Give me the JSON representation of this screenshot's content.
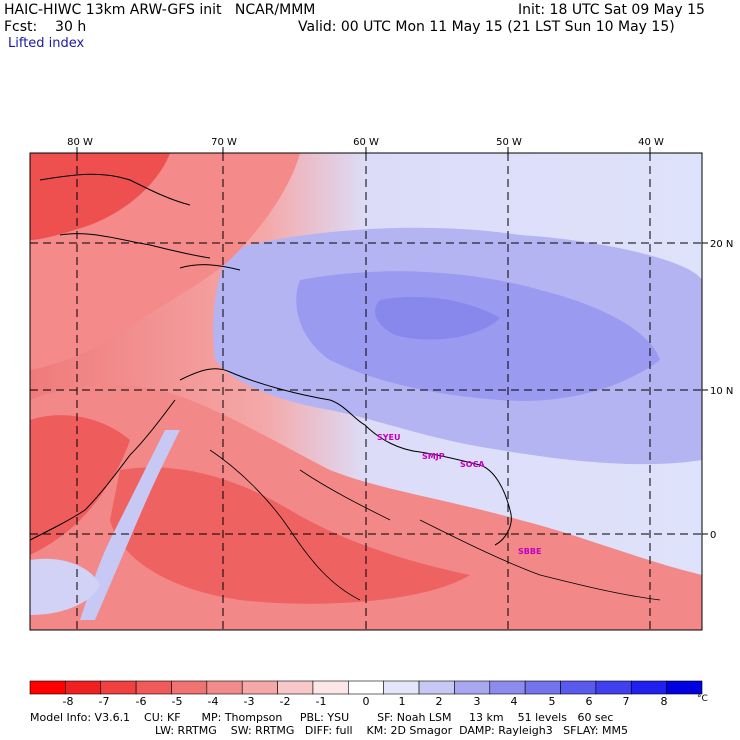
{
  "header": {
    "model": "HAIC-HIWC 13km ARW-GFS init   NCAR/MMM",
    "init": "Init: 18 UTC Sat 09 May 15",
    "fcst": "Fcst:    30 h",
    "valid": "Valid: 00 UTC Mon 11 May 15 (21 LST Sun 10 May 15)",
    "field": "Lifted index"
  },
  "map": {
    "lon_labels": [
      "80 W",
      "70 W",
      "60 W",
      "50 W",
      "40 W"
    ],
    "lat_labels": [
      "20 N",
      "10 N",
      "0"
    ],
    "stations": [
      "SYEU",
      "SMJP",
      "SOCA",
      "SBBE"
    ]
  },
  "colorbar": {
    "labels": [
      "-8",
      "-7",
      "-6",
      "-5",
      "-4",
      "-3",
      "-2",
      "-1",
      "0",
      "1",
      "2",
      "3",
      "4",
      "5",
      "6",
      "7",
      "8"
    ],
    "unit": "°C",
    "colors": [
      "#ff0000",
      "#f02020",
      "#f04040",
      "#f05a5a",
      "#f07373",
      "#f28c8c",
      "#f5a8a8",
      "#f8c8c8",
      "#fce6e6",
      "#ffffff",
      "#e6e6fb",
      "#c8c8f5",
      "#a8a8f0",
      "#8c8cee",
      "#7373ee",
      "#5a5aee",
      "#4040ee",
      "#2020f0",
      "#0000e0"
    ]
  },
  "footer": {
    "line1": "Model Info: V3.6.1    CU: KF      MP: Thompson     PBL: YSU        SF: Noah LSM     13 km    51 levels   60 sec",
    "line2": "LW: RRTMG    SW: RRTMG   DIFF: full    KM: 2D Smagor  DAMP: Rayleigh3   SFLAY: MM5"
  }
}
